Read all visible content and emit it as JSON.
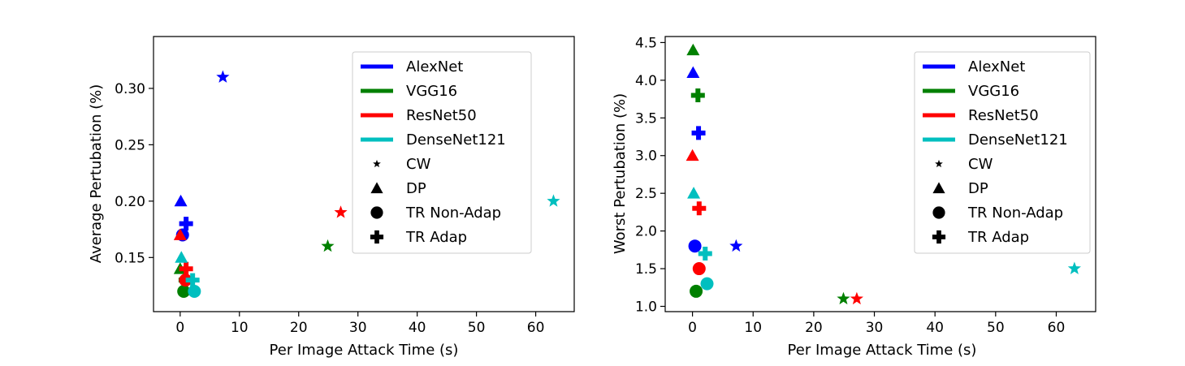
{
  "chart_data": [
    {
      "type": "scatter",
      "id": "left",
      "xlabel": "Per Image Attack Time (s)",
      "ylabel": "Average Pertubation (%)",
      "xlim": [
        -4.5,
        66.5
      ],
      "ylim": [
        0.102,
        0.346
      ],
      "xticks": [
        0,
        10,
        20,
        30,
        40,
        50,
        60
      ],
      "yticks": [
        0.15,
        0.2,
        0.25,
        0.3
      ],
      "ytick_labels": [
        "0.15",
        "0.20",
        "0.25",
        "0.30"
      ],
      "points": [
        {
          "model": "AlexNet",
          "method": "CW",
          "x": 7.2,
          "y": 0.31
        },
        {
          "model": "AlexNet",
          "method": "DP",
          "x": 0.1,
          "y": 0.2
        },
        {
          "model": "AlexNet",
          "method": "TR Non-Adap",
          "x": 0.4,
          "y": 0.17
        },
        {
          "model": "AlexNet",
          "method": "TR Adap",
          "x": 1.0,
          "y": 0.18
        },
        {
          "model": "VGG16",
          "method": "CW",
          "x": 24.9,
          "y": 0.16
        },
        {
          "model": "VGG16",
          "method": "DP",
          "x": 0.0,
          "y": 0.14
        },
        {
          "model": "VGG16",
          "method": "TR Non-Adap",
          "x": 0.6,
          "y": 0.12
        },
        {
          "model": "VGG16",
          "method": "TR Adap",
          "x": 0.9,
          "y": 0.13
        },
        {
          "model": "ResNet50",
          "method": "CW",
          "x": 27.1,
          "y": 0.19
        },
        {
          "model": "ResNet50",
          "method": "DP",
          "x": 0.0,
          "y": 0.17
        },
        {
          "model": "ResNet50",
          "method": "TR Non-Adap",
          "x": 0.9,
          "y": 0.13
        },
        {
          "model": "ResNet50",
          "method": "TR Adap",
          "x": 1.0,
          "y": 0.14
        },
        {
          "model": "DenseNet121",
          "method": "CW",
          "x": 63.0,
          "y": 0.2
        },
        {
          "model": "DenseNet121",
          "method": "DP",
          "x": 0.2,
          "y": 0.15
        },
        {
          "model": "DenseNet121",
          "method": "TR Non-Adap",
          "x": 2.4,
          "y": 0.12
        },
        {
          "model": "DenseNet121",
          "method": "TR Adap",
          "x": 2.1,
          "y": 0.13
        }
      ]
    },
    {
      "type": "scatter",
      "id": "right",
      "xlabel": "Per Image Attack Time (s)",
      "ylabel": "Worst Pertubation (%)",
      "xlim": [
        -4.5,
        66.5
      ],
      "ylim": [
        0.93,
        4.58
      ],
      "xticks": [
        0,
        10,
        20,
        30,
        40,
        50,
        60
      ],
      "yticks": [
        1.0,
        1.5,
        2.0,
        2.5,
        3.0,
        3.5,
        4.0,
        4.5
      ],
      "ytick_labels": [
        "1.0",
        "1.5",
        "2.0",
        "2.5",
        "3.0",
        "3.5",
        "4.0",
        "4.5"
      ],
      "points": [
        {
          "model": "AlexNet",
          "method": "CW",
          "x": 7.2,
          "y": 1.8
        },
        {
          "model": "AlexNet",
          "method": "DP",
          "x": 0.1,
          "y": 4.1
        },
        {
          "model": "AlexNet",
          "method": "TR Non-Adap",
          "x": 0.4,
          "y": 1.8
        },
        {
          "model": "AlexNet",
          "method": "TR Adap",
          "x": 1.0,
          "y": 3.3
        },
        {
          "model": "VGG16",
          "method": "CW",
          "x": 24.9,
          "y": 1.1
        },
        {
          "model": "VGG16",
          "method": "DP",
          "x": 0.1,
          "y": 4.4
        },
        {
          "model": "VGG16",
          "method": "TR Non-Adap",
          "x": 0.6,
          "y": 1.2
        },
        {
          "model": "VGG16",
          "method": "TR Adap",
          "x": 0.9,
          "y": 3.8
        },
        {
          "model": "ResNet50",
          "method": "CW",
          "x": 27.1,
          "y": 1.1
        },
        {
          "model": "ResNet50",
          "method": "DP",
          "x": 0.0,
          "y": 3.0
        },
        {
          "model": "ResNet50",
          "method": "TR Non-Adap",
          "x": 1.1,
          "y": 1.5
        },
        {
          "model": "ResNet50",
          "method": "TR Adap",
          "x": 1.1,
          "y": 2.3
        },
        {
          "model": "DenseNet121",
          "method": "CW",
          "x": 63.0,
          "y": 1.5
        },
        {
          "model": "DenseNet121",
          "method": "DP",
          "x": 0.2,
          "y": 2.5
        },
        {
          "model": "DenseNet121",
          "method": "TR Non-Adap",
          "x": 2.4,
          "y": 1.3
        },
        {
          "model": "DenseNet121",
          "method": "TR Adap",
          "x": 2.1,
          "y": 1.7
        }
      ]
    }
  ],
  "legend": {
    "placement": "top-right",
    "models": [
      {
        "label": "AlexNet",
        "color": "#0000ff"
      },
      {
        "label": "VGG16",
        "color": "#008000"
      },
      {
        "label": "ResNet50",
        "color": "#ff0000"
      },
      {
        "label": "DenseNet121",
        "color": "#00bfbf"
      }
    ],
    "methods": [
      {
        "label": "CW",
        "marker": "star"
      },
      {
        "label": "DP",
        "marker": "triangle"
      },
      {
        "label": "TR Non-Adap",
        "marker": "circle"
      },
      {
        "label": "TR Adap",
        "marker": "plus"
      }
    ]
  },
  "marker_map": {
    "CW": "star",
    "DP": "triangle",
    "TR Non-Adap": "circle",
    "TR Adap": "plus"
  }
}
